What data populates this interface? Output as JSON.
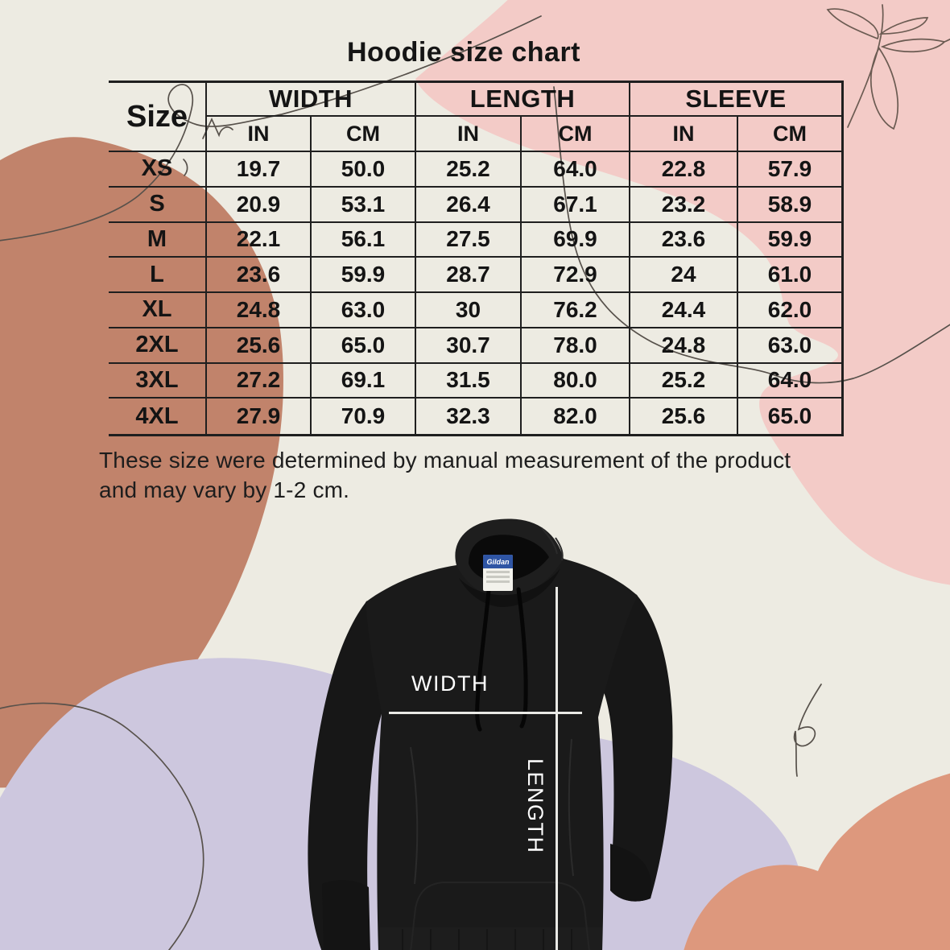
{
  "title": "Hoodie size chart",
  "size_chart": {
    "corner_label": "Size",
    "column_groups": [
      "WIDTH",
      "LENGTH",
      "SLEEVE"
    ],
    "unit_headers": [
      "IN",
      "CM"
    ],
    "rows": [
      {
        "size": "XS",
        "values": [
          "19.7",
          "50.0",
          "25.2",
          "64.0",
          "22.8",
          "57.9"
        ]
      },
      {
        "size": "S",
        "values": [
          "20.9",
          "53.1",
          "26.4",
          "67.1",
          "23.2",
          "58.9"
        ]
      },
      {
        "size": "M",
        "values": [
          "22.1",
          "56.1",
          "27.5",
          "69.9",
          "23.6",
          "59.9"
        ]
      },
      {
        "size": "L",
        "values": [
          "23.6",
          "59.9",
          "28.7",
          "72.9",
          "24",
          "61.0"
        ]
      },
      {
        "size": "XL",
        "values": [
          "24.8",
          "63.0",
          "30",
          "76.2",
          "24.4",
          "62.0"
        ]
      },
      {
        "size": "2XL",
        "values": [
          "25.6",
          "65.0",
          "30.7",
          "78.0",
          "24.8",
          "63.0"
        ]
      },
      {
        "size": "3XL",
        "values": [
          "27.2",
          "69.1",
          "31.5",
          "80.0",
          "25.2",
          "64.0"
        ]
      },
      {
        "size": "4XL",
        "values": [
          "27.9",
          "70.9",
          "32.3",
          "82.0",
          "25.6",
          "65.0"
        ]
      }
    ]
  },
  "note": {
    "line1": "These size were determined by manual measurement of the product",
    "line2": "and may vary by 1-2 cm."
  },
  "diagram": {
    "width_label": "WIDTH",
    "length_label": "LENGTH",
    "brand_label": "Gildan"
  },
  "colors": {
    "background": "#EDEBE2",
    "pink_blob": "#F3CBC7",
    "terracotta_blob": "#C1836B",
    "lavender_blob": "#CDC7DE",
    "salmon_blob": "#DD987D",
    "line_art": "#57514B",
    "table_border": "#1F1F1F",
    "text": "#141414",
    "hoodie_black": "#1A1A1A",
    "measure_line": "#E9E9E5",
    "brand_band_blue": "#2F55A4"
  },
  "chart_data": {
    "type": "table",
    "title": "Hoodie size chart",
    "columns": [
      "Size",
      "Width (IN)",
      "Width (CM)",
      "Length (IN)",
      "Length (CM)",
      "Sleeve (IN)",
      "Sleeve (CM)"
    ],
    "rows": [
      [
        "XS",
        "19.7",
        "50.0",
        "25.2",
        "64.0",
        "22.8",
        "57.9"
      ],
      [
        "S",
        "20.9",
        "53.1",
        "26.4",
        "67.1",
        "23.2",
        "58.9"
      ],
      [
        "M",
        "22.1",
        "56.1",
        "27.5",
        "69.9",
        "23.6",
        "59.9"
      ],
      [
        "L",
        "23.6",
        "59.9",
        "28.7",
        "72.9",
        "24",
        "61.0"
      ],
      [
        "XL",
        "24.8",
        "63.0",
        "30",
        "76.2",
        "24.4",
        "62.0"
      ],
      [
        "2XL",
        "25.6",
        "65.0",
        "30.7",
        "78.0",
        "24.8",
        "63.0"
      ],
      [
        "3XL",
        "27.2",
        "69.1",
        "31.5",
        "80.0",
        "25.2",
        "64.0"
      ],
      [
        "4XL",
        "27.9",
        "70.9",
        "32.3",
        "82.0",
        "25.6",
        "65.0"
      ]
    ],
    "footnote": "These size were determined by manual measurement of the product and may vary by 1-2 cm."
  }
}
